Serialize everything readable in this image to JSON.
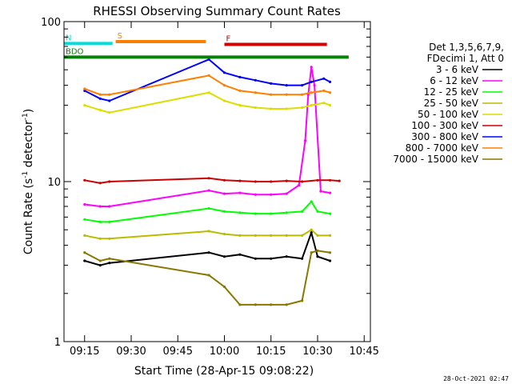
{
  "chart_data": {
    "type": "line",
    "title": "RHESSI Observing Summary Count Rates",
    "xlabel": "Start Time (28-Apr-15 09:08:22)",
    "ylabel": "Count Rate (s⁻¹ detector⁻¹)",
    "ylabel_parts": [
      "Count Rate (s",
      "-1",
      " detector",
      "-1",
      ")"
    ],
    "yscale": "log",
    "xlim": [
      "09:08:22",
      "10:47:00"
    ],
    "ylim": [
      1,
      100
    ],
    "x_ticks": [
      "09:15",
      "09:30",
      "09:45",
      "10:00",
      "10:15",
      "10:30",
      "10:45"
    ],
    "y_ticks": [
      "1",
      "10",
      "100"
    ],
    "grid": false,
    "legend_position": "right",
    "legend_header": [
      "Det 1,3,5,6,7,9,",
      "FDecimi 1, Att 0"
    ],
    "series": [
      {
        "name": "3 - 6 keV",
        "color": "#000000",
        "points": [
          [
            "09:15",
            3.2
          ],
          [
            "09:20",
            3.0
          ],
          [
            "09:23",
            3.1
          ],
          [
            "09:55",
            3.6
          ],
          [
            "10:00",
            3.4
          ],
          [
            "10:05",
            3.5
          ],
          [
            "10:10",
            3.3
          ],
          [
            "10:15",
            3.3
          ],
          [
            "10:20",
            3.4
          ],
          [
            "10:25",
            3.3
          ],
          [
            "10:28",
            4.8
          ],
          [
            "10:30",
            3.4
          ],
          [
            "10:34",
            3.2
          ]
        ]
      },
      {
        "name": "6 - 12 keV",
        "color": "#ff00ff",
        "points": [
          [
            "09:15",
            7.2
          ],
          [
            "09:20",
            7.0
          ],
          [
            "09:23",
            7.0
          ],
          [
            "09:55",
            8.8
          ],
          [
            "10:00",
            8.4
          ],
          [
            "10:05",
            8.5
          ],
          [
            "10:10",
            8.3
          ],
          [
            "10:15",
            8.3
          ],
          [
            "10:20",
            8.4
          ],
          [
            "10:24",
            9.5
          ],
          [
            "10:26",
            18
          ],
          [
            "10:27",
            35
          ],
          [
            "10:28",
            52
          ],
          [
            "10:29",
            40
          ],
          [
            "10:31",
            8.7
          ],
          [
            "10:34",
            8.5
          ]
        ]
      },
      {
        "name": "12 - 25 keV",
        "color": "#00ff00",
        "points": [
          [
            "09:15",
            5.8
          ],
          [
            "09:20",
            5.6
          ],
          [
            "09:23",
            5.6
          ],
          [
            "09:55",
            6.8
          ],
          [
            "10:00",
            6.5
          ],
          [
            "10:05",
            6.4
          ],
          [
            "10:10",
            6.3
          ],
          [
            "10:15",
            6.3
          ],
          [
            "10:20",
            6.4
          ],
          [
            "10:25",
            6.5
          ],
          [
            "10:28",
            7.5
          ],
          [
            "10:30",
            6.5
          ],
          [
            "10:34",
            6.3
          ]
        ]
      },
      {
        "name": "25 - 50 keV",
        "color": "#bbbb00",
        "points": [
          [
            "09:15",
            4.6
          ],
          [
            "09:20",
            4.4
          ],
          [
            "09:23",
            4.4
          ],
          [
            "09:55",
            4.9
          ],
          [
            "10:00",
            4.7
          ],
          [
            "10:05",
            4.6
          ],
          [
            "10:10",
            4.6
          ],
          [
            "10:15",
            4.6
          ],
          [
            "10:20",
            4.6
          ],
          [
            "10:25",
            4.6
          ],
          [
            "10:28",
            5.0
          ],
          [
            "10:30",
            4.6
          ],
          [
            "10:34",
            4.6
          ]
        ]
      },
      {
        "name": "50 - 100 keV",
        "color": "#dddd00",
        "points": [
          [
            "09:15",
            30
          ],
          [
            "09:20",
            28
          ],
          [
            "09:23",
            27
          ],
          [
            "09:55",
            36
          ],
          [
            "10:00",
            32
          ],
          [
            "10:05",
            30
          ],
          [
            "10:10",
            29
          ],
          [
            "10:15",
            28.5
          ],
          [
            "10:20",
            28.5
          ],
          [
            "10:25",
            29
          ],
          [
            "10:28",
            30
          ],
          [
            "10:32",
            31
          ],
          [
            "10:34",
            30
          ]
        ]
      },
      {
        "name": "100 - 300 keV",
        "color": "#cc0000",
        "points": [
          [
            "09:15",
            10.2
          ],
          [
            "09:20",
            9.8
          ],
          [
            "09:23",
            10.0
          ],
          [
            "09:55",
            10.5
          ],
          [
            "10:00",
            10.2
          ],
          [
            "10:05",
            10.1
          ],
          [
            "10:10",
            10.0
          ],
          [
            "10:15",
            10.0
          ],
          [
            "10:20",
            10.1
          ],
          [
            "10:25",
            10.0
          ],
          [
            "10:30",
            10.2
          ],
          [
            "10:34",
            10.2
          ],
          [
            "10:37",
            10.1
          ]
        ]
      },
      {
        "name": "300 - 800 keV",
        "color": "#0000ff",
        "points": [
          [
            "09:15",
            37
          ],
          [
            "09:20",
            33
          ],
          [
            "09:23",
            32
          ],
          [
            "09:55",
            58
          ],
          [
            "10:00",
            48
          ],
          [
            "10:05",
            45
          ],
          [
            "10:10",
            43
          ],
          [
            "10:15",
            41
          ],
          [
            "10:20",
            40
          ],
          [
            "10:25",
            40
          ],
          [
            "10:28",
            42
          ],
          [
            "10:32",
            44
          ],
          [
            "10:34",
            42
          ]
        ]
      },
      {
        "name": "800 - 7000 keV",
        "color": "#ff8000",
        "points": [
          [
            "09:15",
            38
          ],
          [
            "09:20",
            35
          ],
          [
            "09:23",
            35
          ],
          [
            "09:55",
            46
          ],
          [
            "10:00",
            40
          ],
          [
            "10:05",
            37
          ],
          [
            "10:10",
            36
          ],
          [
            "10:15",
            35
          ],
          [
            "10:20",
            35
          ],
          [
            "10:25",
            35
          ],
          [
            "10:28",
            36
          ],
          [
            "10:32",
            37
          ],
          [
            "10:34",
            36
          ]
        ]
      },
      {
        "name": "7000 - 15000 keV",
        "color": "#887700",
        "points": [
          [
            "09:15",
            3.6
          ],
          [
            "09:20",
            3.2
          ],
          [
            "09:23",
            3.3
          ],
          [
            "09:55",
            2.6
          ],
          [
            "10:00",
            2.2
          ],
          [
            "10:05",
            1.7
          ],
          [
            "10:10",
            1.7
          ],
          [
            "10:15",
            1.7
          ],
          [
            "10:20",
            1.7
          ],
          [
            "10:25",
            1.8
          ],
          [
            "10:28",
            3.6
          ],
          [
            "10:30",
            3.7
          ],
          [
            "10:34",
            3.6
          ]
        ]
      }
    ],
    "flag_bars": [
      {
        "label": "BDO",
        "color": "#008000",
        "level": 60,
        "start": "09:08:22",
        "end": "10:40:00"
      },
      {
        "label": "S",
        "color": "#ff8000",
        "level": 75,
        "start": "09:25:00",
        "end": "09:54:00"
      },
      {
        "label": "N",
        "color": "#00dddd",
        "level": 73,
        "start": "09:08:22",
        "end": "09:24:00"
      },
      {
        "label": "F",
        "color": "#cc0000",
        "level": 72,
        "start": "10:00:00",
        "end": "10:33:00"
      }
    ],
    "footer_timestamp": "28-Oct-2021 02:47"
  }
}
